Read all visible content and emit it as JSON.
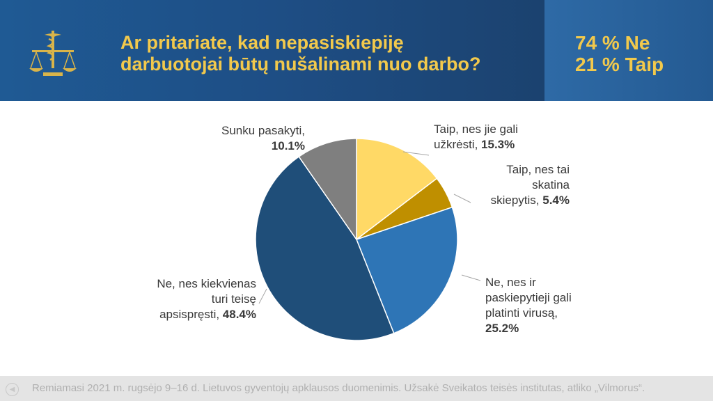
{
  "header": {
    "title_lines": [
      "Ar pritariate, kad nepasiskiepiję",
      "darbuotojai būtų nušalinami nuo darbo?"
    ],
    "summary": [
      "74 % Ne",
      "21 % Taip"
    ],
    "logo_icon": "scales-caduceus-icon"
  },
  "chart_data": {
    "type": "pie",
    "title": "Ar pritariate, kad nepasiskiepiję darbuotojai būtų nušalinami nuo darbo?",
    "start": "12 o'clock, clockwise",
    "slices": [
      {
        "label": "Taip, nes jie gali užkrėsti",
        "value": 15.3,
        "value_label": "15.3%",
        "color": "#ffd966",
        "text_lines": [
          "Taip, nes jie gali",
          "užkrėsti, "
        ]
      },
      {
        "label": "Taip, nes tai skatina skiepytis",
        "value": 5.4,
        "value_label": "5.4%",
        "color": "#bf8f00",
        "text_lines": [
          "Taip, nes tai",
          "skatina",
          "skiepytis, "
        ]
      },
      {
        "label": "Ne, nes ir paskiepytieji gali platinti virusą",
        "value": 25.2,
        "value_label": "25.2%",
        "color": "#2e75b6",
        "text_lines": [
          "Ne, nes ir",
          "paskiepytieji gali",
          "platinti virusą,",
          ""
        ]
      },
      {
        "label": "Ne, nes kiekvienas turi teisę apsispręsti",
        "value": 48.4,
        "value_label": "48.4%",
        "color": "#1f4e79",
        "text_lines": [
          "Ne, nes kiekvienas",
          "turi teisę",
          "apsispręsti, "
        ]
      },
      {
        "label": "Sunku pasakyti",
        "value": 10.1,
        "value_label": "10.1%",
        "color": "#7f7f7f",
        "text_lines": [
          "Sunku pasakyti,",
          ""
        ]
      }
    ],
    "colors": {
      "slice_border": "#ffffff",
      "leader_line": "#a6a6a6",
      "label_text": "#3a3a3a"
    }
  },
  "footer": {
    "text": "Remiamasi 2021 m. rugsėjo 9–16 d. Lietuvos gyventojų apklausos duomenimis. Užsakė Sveikatos teisės institutas, atliko „Vilmorus“."
  }
}
